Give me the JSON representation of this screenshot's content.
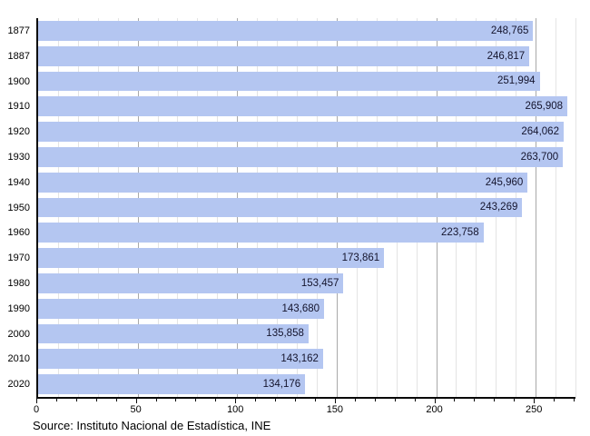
{
  "chart_data": {
    "type": "bar",
    "orientation": "horizontal",
    "title": "",
    "xlabel": "",
    "ylabel": "",
    "categories": [
      "1877",
      "1887",
      "1900",
      "1910",
      "1920",
      "1930",
      "1940",
      "1950",
      "1960",
      "1970",
      "1980",
      "1990",
      "2000",
      "2010",
      "2020"
    ],
    "values": [
      248765,
      246817,
      251994,
      265908,
      264062,
      263700,
      245960,
      243269,
      223758,
      173861,
      153457,
      143680,
      135858,
      143162,
      134176
    ],
    "value_labels": [
      "248,765",
      "246,817",
      "251,994",
      "265,908",
      "264,062",
      "263,700",
      "245,960",
      "243,269",
      "223,758",
      "173,861",
      "153,457",
      "143,680",
      "135,858",
      "143,162",
      "134,176"
    ],
    "x_axis": {
      "ticks": [
        0,
        50,
        100,
        150,
        200,
        250
      ],
      "minor_step": 10,
      "major_step": 50,
      "max": 270,
      "unit_scale": "thousands"
    },
    "grid": "vertical",
    "legend": "none",
    "source": "Source: Instituto Nacional de Estadística, INE",
    "colors": {
      "bar": "#b4c6f1",
      "value_text": "#14142d",
      "grid_minor": "#e4e4e4",
      "grid_major": "#a9a9a9",
      "axis": "#0a0a0a"
    }
  }
}
